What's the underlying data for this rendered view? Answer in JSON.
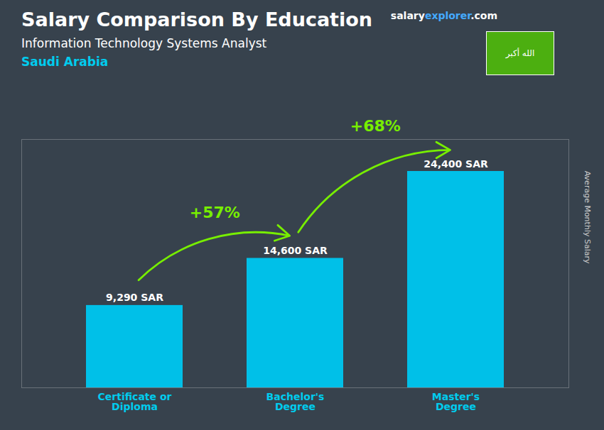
{
  "chart_data": {
    "type": "bar",
    "title": "Salary Comparison By Education",
    "subtitle": "Information Technology Systems Analyst",
    "country": "Saudi Arabia",
    "watermark": [
      "salary",
      "explorer",
      ".com"
    ],
    "flag_text": "الله أكبر",
    "ylabel": "Average Monthly Salary",
    "categories": [
      "Certificate or\nDiploma",
      "Bachelor's\nDegree",
      "Master's\nDegree"
    ],
    "values": [
      9290,
      14600,
      24400
    ],
    "value_labels": [
      "9,290 SAR",
      "14,600 SAR",
      "24,400 SAR"
    ],
    "data_labels": true,
    "color": "#00c0e8",
    "ylim": [
      0,
      28000
    ],
    "tick_labels": "x",
    "grid": false,
    "annotations": [
      {
        "text": "+57%",
        "from": "Certificate or\nDiploma",
        "to": "Bachelor's\nDegree"
      },
      {
        "text": "+68%",
        "from": "Bachelor's\nDegree",
        "to": "Master's\nDegree"
      }
    ]
  }
}
